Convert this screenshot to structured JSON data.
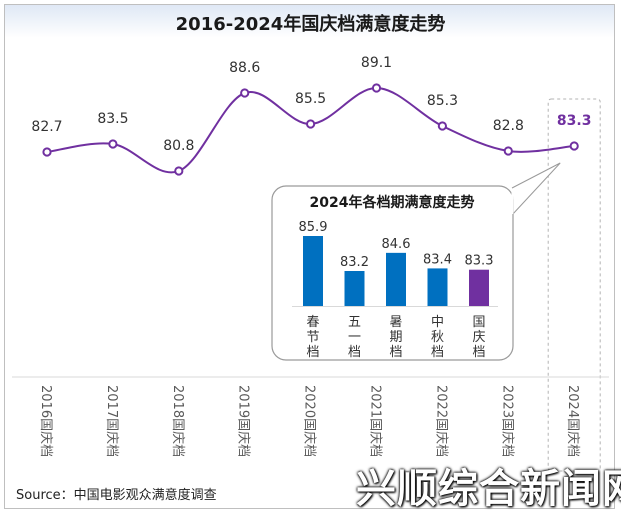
{
  "title": "2016-2024年国庆档满意度走势",
  "source": "Source：中国电影观众满意度调查",
  "watermark": "兴顺综合新闻网",
  "colors": {
    "line": "#7030a0",
    "bar_blue": "#0070c0",
    "bar_highlight": "#7030a0",
    "highlight_label": "#7030a0"
  },
  "chart_data": [
    {
      "type": "line",
      "title": "2016-2024年国庆档满意度走势",
      "categories": [
        "2016国庆档",
        "2017国庆档",
        "2018国庆档",
        "2019国庆档",
        "2020国庆档",
        "2021国庆档",
        "2022国庆档",
        "2023国庆档",
        "2024国庆档"
      ],
      "series": [
        {
          "values": [
            82.7,
            83.5,
            80.8,
            88.6,
            85.5,
            89.1,
            85.3,
            82.8,
            83.3
          ]
        }
      ],
      "highlight_index": 8,
      "data_labels": true,
      "grid": false
    },
    {
      "type": "bar",
      "title": "2024年各档期满意度走势",
      "categories": [
        "春节档",
        "五一档",
        "暑期档",
        "中秋档",
        "国庆档"
      ],
      "values": [
        85.9,
        83.2,
        84.6,
        83.4,
        83.3
      ],
      "highlight_index": 4,
      "data_labels": true
    }
  ]
}
